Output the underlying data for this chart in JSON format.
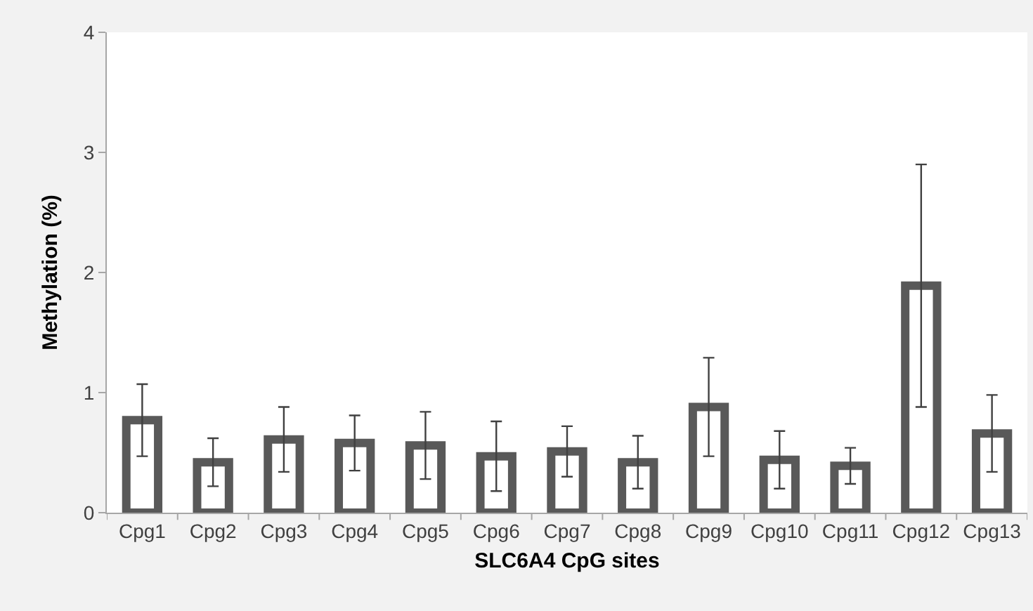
{
  "chart_data": {
    "type": "bar",
    "xlabel": "SLC6A4 CpG sites",
    "ylabel": "Methylation (%)",
    "categories": [
      "Cpg1",
      "Cpg2",
      "Cpg3",
      "Cpg4",
      "Cpg5",
      "Cpg6",
      "Cpg7",
      "Cpg8",
      "Cpg9",
      "Cpg10",
      "Cpg11",
      "Cpg12",
      "Cpg13"
    ],
    "values": [
      0.77,
      0.42,
      0.61,
      0.58,
      0.56,
      0.47,
      0.51,
      0.42,
      0.88,
      0.44,
      0.39,
      1.89,
      0.66
    ],
    "errors": [
      0.3,
      0.2,
      0.27,
      0.23,
      0.28,
      0.29,
      0.21,
      0.22,
      0.41,
      0.24,
      0.15,
      1.01,
      0.32
    ],
    "color": "#595959",
    "ylim": [
      0,
      4
    ],
    "yticks": [
      0,
      1,
      2,
      3,
      4
    ],
    "grid": false,
    "legend": false
  }
}
